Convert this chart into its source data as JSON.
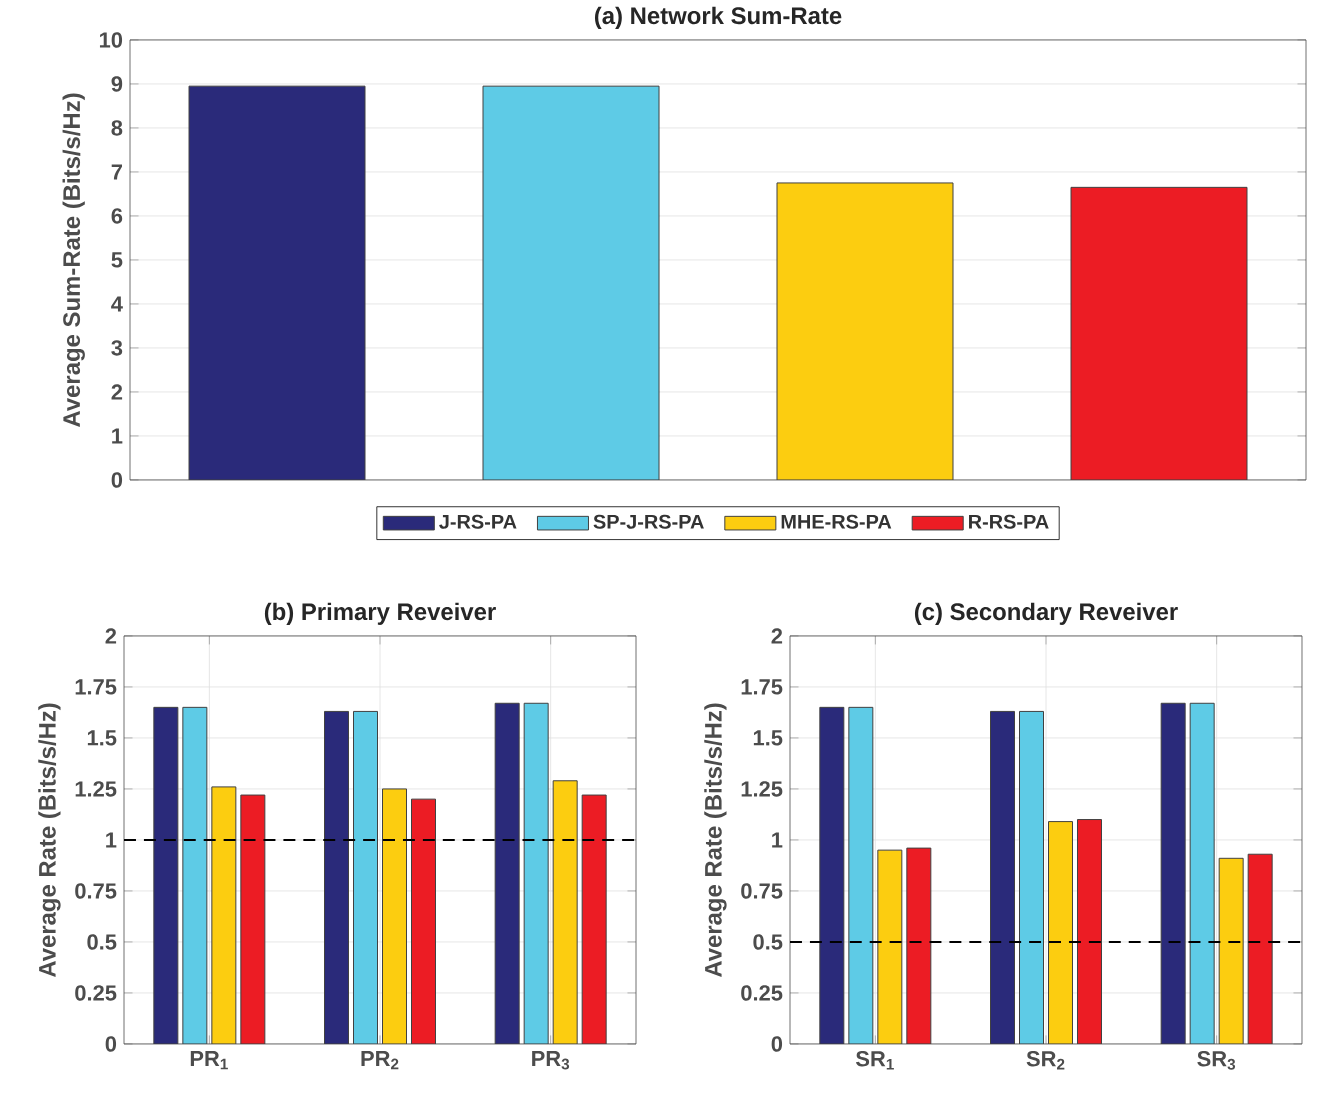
{
  "chart_data": [
    {
      "type": "bar",
      "title": "(a) Network Sum-Rate",
      "ylabel": "Average Sum-Rate (Bits/s/Hz)",
      "categories": [
        null
      ],
      "ylim": [
        0,
        10
      ],
      "yticks": [
        0,
        1,
        2,
        3,
        4,
        5,
        6,
        7,
        8,
        9,
        10
      ],
      "grid": "y",
      "legend": "bottom",
      "series": [
        {
          "name": "J-RS-PA",
          "color": "#2a2a7a",
          "values": [
            8.95
          ]
        },
        {
          "name": "SP-J-RS-PA",
          "color": "#5ecbe6",
          "values": [
            8.95
          ]
        },
        {
          "name": "MHE-RS-PA",
          "color": "#fccd10",
          "values": [
            6.75
          ]
        },
        {
          "name": "R-RS-PA",
          "color": "#ec1c24",
          "values": [
            6.65
          ]
        }
      ]
    },
    {
      "type": "bar",
      "title": "(b) Primary Reveiver",
      "ylabel": "Average Rate (Bits/s/Hz)",
      "categories": [
        "PR$_{1}$",
        "PR$_{2}$",
        "PR$_{3}$"
      ],
      "ylim": [
        0,
        2
      ],
      "yticks": [
        0,
        {
          "value": 0.25,
          "label": "0.25"
        },
        0.5,
        {
          "value": 0.75,
          "label": "0.75"
        },
        1,
        {
          "value": 1.25,
          "label": "1.25"
        },
        1.5,
        {
          "value": 1.75,
          "label": "1.75"
        },
        2
      ],
      "grid": true,
      "ref_lines": [
        {
          "axis": "y",
          "value": 1,
          "color": "#000000",
          "line_style": "dashed"
        }
      ],
      "series": [
        {
          "color": "#2a2a7a",
          "values": [
            1.65,
            1.63,
            1.67
          ]
        },
        {
          "color": "#5ecbe6",
          "values": [
            1.65,
            1.63,
            1.67
          ]
        },
        {
          "color": "#fccd10",
          "values": [
            1.26,
            1.25,
            1.29
          ]
        },
        {
          "color": "#ec1c24",
          "values": [
            1.22,
            1.2,
            1.22
          ]
        }
      ]
    },
    {
      "type": "bar",
      "title": "(c) Secondary Reveiver",
      "ylabel": "Average Rate (Bits/s/Hz)",
      "categories": [
        "SR$_{1}$",
        "SR$_{2}$",
        "SR$_{3}$"
      ],
      "ylim": [
        0,
        2
      ],
      "yticks": [
        0,
        {
          "value": 0.25,
          "label": "0.25"
        },
        0.5,
        {
          "value": 0.75,
          "label": "0.75"
        },
        1,
        {
          "value": 1.25,
          "label": "1.25"
        },
        1.5,
        {
          "value": 1.75,
          "label": "1.75"
        },
        2
      ],
      "grid": true,
      "ref_lines": [
        {
          "axis": "y",
          "value": 0.5,
          "color": "#000000",
          "line_style": "dashed"
        }
      ],
      "series": [
        {
          "color": "#2a2a7a",
          "values": [
            1.65,
            1.63,
            1.67
          ]
        },
        {
          "color": "#5ecbe6",
          "values": [
            1.65,
            1.63,
            1.67
          ]
        },
        {
          "color": "#fccd10",
          "values": [
            0.95,
            1.09,
            0.91
          ]
        },
        {
          "color": "#ec1c24",
          "values": [
            0.96,
            1.1,
            0.93
          ]
        }
      ]
    }
  ]
}
